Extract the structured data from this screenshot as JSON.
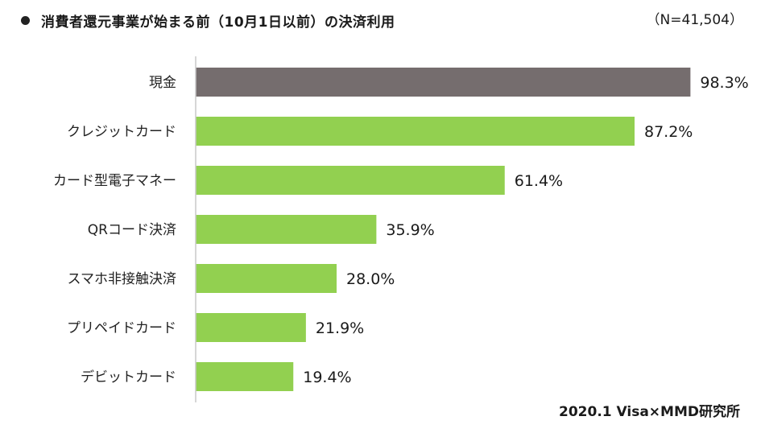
{
  "chart_data": {
    "type": "bar",
    "orientation": "horizontal",
    "title": "消費者還元事業が始まる前（10月1日以前）の決済利用",
    "sample_size": "（N=41,504）",
    "source": "2020.1 Visa×MMD研究所",
    "categories": [
      "現金",
      "クレジットカード",
      "カード型電子マネー",
      "QRコード決済",
      "スマホ非接触決済",
      "プリペイドカード",
      "デビットカード"
    ],
    "values": [
      98.3,
      87.2,
      61.4,
      35.9,
      28.0,
      21.9,
      19.4
    ],
    "value_labels": [
      "98.3%",
      "87.2%",
      "61.4%",
      "35.9%",
      "28.0%",
      "21.9%",
      "19.4%"
    ],
    "xlim": [
      0,
      100
    ],
    "xlabel": "",
    "ylabel": "",
    "grid": false,
    "colors": {
      "highlight": "#756d6e",
      "bar": "#92d050",
      "axis": "#c8c8c8"
    }
  }
}
